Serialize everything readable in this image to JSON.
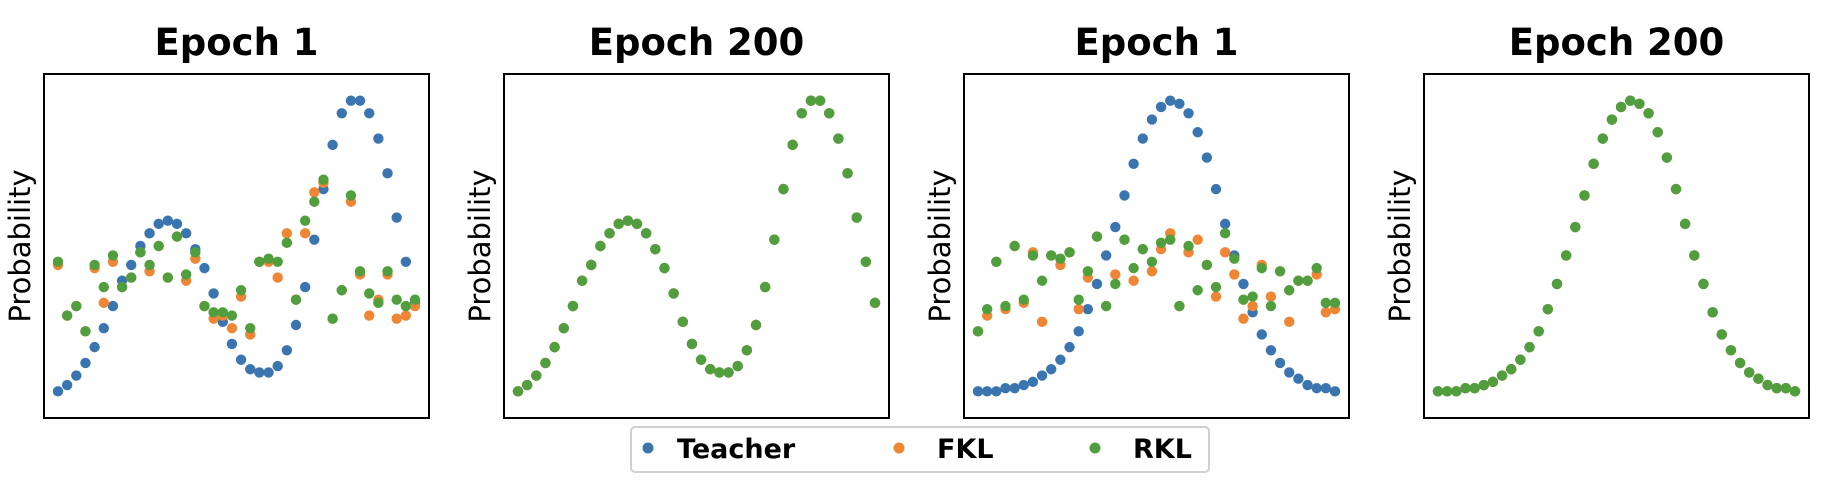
{
  "colors": {
    "teacher": "#3b75af",
    "fkl": "#ef8636",
    "rkl": "#519e3e"
  },
  "legend": {
    "items": [
      {
        "name": "Teacher",
        "color": "#3b75af"
      },
      {
        "name": "FKL",
        "color": "#ef8636"
      },
      {
        "name": "RKL",
        "color": "#519e3e"
      }
    ]
  },
  "chart_data": [
    {
      "type": "scatter",
      "title": "Epoch 1",
      "ylabel": "Probability",
      "xlabel": "",
      "xlim": [
        0,
        39
      ],
      "ylim": [
        0,
        1
      ],
      "series": [
        {
          "name": "Teacher",
          "x": [
            1,
            2,
            3,
            4,
            5,
            6,
            7,
            8,
            9,
            10,
            11,
            12,
            13,
            14,
            15,
            16,
            17,
            18,
            19,
            20,
            21,
            22,
            23,
            24,
            25,
            26,
            27,
            28,
            29,
            30,
            31,
            32,
            33,
            34,
            35,
            36,
            37,
            38,
            39,
            40
          ],
          "values": [
            0.04,
            0.06,
            0.09,
            0.13,
            0.18,
            0.24,
            0.31,
            0.39,
            0.44,
            0.5,
            0.54,
            0.57,
            0.58,
            0.57,
            0.54,
            0.49,
            0.43,
            0.35,
            0.26,
            0.19,
            0.14,
            0.11,
            0.1,
            0.1,
            0.12,
            0.17,
            0.25,
            0.37,
            0.52,
            0.68,
            0.82,
            0.92,
            0.96,
            0.96,
            0.92,
            0.84,
            0.73,
            0.59,
            0.45,
            0.32
          ]
        },
        {
          "name": "FKL",
          "x": [
            1,
            2,
            3,
            4,
            5,
            6,
            7,
            8,
            9,
            10,
            11,
            12,
            13,
            14,
            15,
            16,
            17,
            18,
            19,
            20,
            21,
            22,
            23,
            24,
            25,
            26,
            27,
            28,
            29,
            30,
            31,
            32,
            33,
            34,
            35,
            36,
            37,
            38,
            39,
            40
          ],
          "values": [
            0.44,
            0.28,
            0.31,
            0.23,
            0.43,
            0.32,
            0.45,
            0.37,
            0.4,
            0.48,
            0.42,
            0.5,
            0.4,
            0.53,
            0.39,
            0.46,
            0.31,
            0.27,
            0.28,
            0.24,
            0.34,
            0.22,
            0.45,
            0.45,
            0.4,
            0.54,
            0.33,
            0.54,
            0.67,
            0.7,
            0.27,
            0.36,
            0.64,
            0.41,
            0.28,
            0.33,
            0.41,
            0.27,
            0.28,
            0.31
          ]
        },
        {
          "name": "RKL",
          "x": [
            1,
            2,
            3,
            4,
            5,
            6,
            7,
            8,
            9,
            10,
            11,
            12,
            13,
            14,
            15,
            16,
            17,
            18,
            19,
            20,
            21,
            22,
            23,
            24,
            25,
            26,
            27,
            28,
            29,
            30,
            31,
            32,
            33,
            34,
            35,
            36,
            37,
            38,
            39,
            40
          ],
          "values": [
            0.45,
            0.28,
            0.31,
            0.23,
            0.44,
            0.37,
            0.47,
            0.37,
            0.4,
            0.48,
            0.44,
            0.5,
            0.4,
            0.53,
            0.41,
            0.48,
            0.31,
            0.29,
            0.29,
            0.28,
            0.36,
            0.24,
            0.45,
            0.46,
            0.45,
            0.51,
            0.33,
            0.58,
            0.64,
            0.71,
            0.27,
            0.36,
            0.66,
            0.42,
            0.35,
            0.32,
            0.42,
            0.33,
            0.31,
            0.33
          ]
        }
      ]
    },
    {
      "type": "scatter",
      "title": "Epoch 200",
      "ylabel": "Probability",
      "xlabel": "",
      "xlim": [
        0,
        39
      ],
      "ylim": [
        0,
        1
      ],
      "series": [
        {
          "name": "Teacher",
          "x": [
            1,
            2,
            3,
            4,
            5,
            6,
            7,
            8,
            9,
            10,
            11,
            12,
            13,
            14,
            15,
            16,
            17,
            18,
            19,
            20,
            21,
            22,
            23,
            24,
            25,
            26,
            27,
            28,
            29,
            30,
            31,
            32,
            33,
            34,
            35,
            36,
            37,
            38,
            39,
            40
          ],
          "values": [
            0.04,
            0.06,
            0.09,
            0.13,
            0.18,
            0.24,
            0.31,
            0.39,
            0.44,
            0.5,
            0.54,
            0.57,
            0.58,
            0.57,
            0.54,
            0.49,
            0.43,
            0.35,
            0.26,
            0.19,
            0.14,
            0.11,
            0.1,
            0.1,
            0.12,
            0.17,
            0.25,
            0.37,
            0.52,
            0.68,
            0.82,
            0.92,
            0.96,
            0.96,
            0.92,
            0.84,
            0.73,
            0.59,
            0.45,
            0.32
          ]
        },
        {
          "name": "FKL",
          "x": [
            1,
            2,
            3,
            4,
            5,
            6,
            7,
            8,
            9,
            10,
            11,
            12,
            13,
            14,
            15,
            16,
            17,
            18,
            19,
            20,
            21,
            22,
            23,
            24,
            25,
            26,
            27,
            28,
            29,
            30,
            31,
            32,
            33,
            34,
            35,
            36,
            37,
            38,
            39,
            40
          ],
          "values": [
            0.04,
            0.06,
            0.09,
            0.13,
            0.18,
            0.24,
            0.31,
            0.39,
            0.44,
            0.5,
            0.54,
            0.57,
            0.58,
            0.57,
            0.54,
            0.49,
            0.43,
            0.35,
            0.26,
            0.19,
            0.14,
            0.11,
            0.1,
            0.1,
            0.12,
            0.17,
            0.25,
            0.37,
            0.52,
            0.68,
            0.82,
            0.92,
            0.96,
            0.96,
            0.92,
            0.84,
            0.73,
            0.59,
            0.45,
            0.32
          ]
        },
        {
          "name": "RKL",
          "x": [
            1,
            2,
            3,
            4,
            5,
            6,
            7,
            8,
            9,
            10,
            11,
            12,
            13,
            14,
            15,
            16,
            17,
            18,
            19,
            20,
            21,
            22,
            23,
            24,
            25,
            26,
            27,
            28,
            29,
            30,
            31,
            32,
            33,
            34,
            35,
            36,
            37,
            38,
            39,
            40
          ],
          "values": [
            0.04,
            0.06,
            0.09,
            0.13,
            0.18,
            0.24,
            0.31,
            0.39,
            0.44,
            0.5,
            0.54,
            0.57,
            0.58,
            0.57,
            0.54,
            0.49,
            0.43,
            0.35,
            0.26,
            0.19,
            0.14,
            0.11,
            0.1,
            0.1,
            0.12,
            0.17,
            0.25,
            0.37,
            0.52,
            0.68,
            0.82,
            0.92,
            0.96,
            0.96,
            0.92,
            0.84,
            0.73,
            0.59,
            0.45,
            0.32
          ]
        }
      ]
    },
    {
      "type": "scatter",
      "title": "Epoch 1",
      "ylabel": "Probability",
      "xlabel": "",
      "xlim": [
        0,
        39
      ],
      "ylim": [
        0,
        1
      ],
      "series": [
        {
          "name": "Teacher",
          "x": [
            1,
            2,
            3,
            4,
            5,
            6,
            7,
            8,
            9,
            10,
            11,
            12,
            13,
            14,
            15,
            16,
            17,
            18,
            19,
            20,
            21,
            22,
            23,
            24,
            25,
            26,
            27,
            28,
            29,
            30,
            31,
            32,
            33,
            34,
            35,
            36,
            37,
            38,
            39,
            40
          ],
          "values": [
            0.04,
            0.04,
            0.04,
            0.05,
            0.05,
            0.06,
            0.07,
            0.09,
            0.11,
            0.14,
            0.18,
            0.23,
            0.3,
            0.38,
            0.47,
            0.56,
            0.66,
            0.76,
            0.84,
            0.9,
            0.94,
            0.96,
            0.95,
            0.92,
            0.86,
            0.78,
            0.68,
            0.57,
            0.47,
            0.38,
            0.29,
            0.22,
            0.17,
            0.13,
            0.1,
            0.08,
            0.06,
            0.05,
            0.05,
            0.04
          ]
        },
        {
          "name": "FKL",
          "x": [
            1,
            2,
            3,
            4,
            5,
            6,
            7,
            8,
            9,
            10,
            11,
            12,
            13,
            14,
            15,
            16,
            17,
            18,
            19,
            20,
            21,
            22,
            23,
            24,
            25,
            26,
            27,
            28,
            29,
            30,
            31,
            32,
            33,
            34,
            35,
            36,
            37,
            38,
            39,
            40
          ],
          "values": [
            0.23,
            0.28,
            0.45,
            0.3,
            0.5,
            0.32,
            0.48,
            0.26,
            0.47,
            0.44,
            0.48,
            0.3,
            0.4,
            0.53,
            0.31,
            0.41,
            0.52,
            0.39,
            0.49,
            0.42,
            0.49,
            0.54,
            0.31,
            0.48,
            0.52,
            0.44,
            0.34,
            0.48,
            0.41,
            0.27,
            0.31,
            0.44,
            0.34,
            0.42,
            0.26,
            0.39,
            0.39,
            0.41,
            0.29,
            0.3
          ]
        },
        {
          "name": "RKL",
          "x": [
            1,
            2,
            3,
            4,
            5,
            6,
            7,
            8,
            9,
            10,
            11,
            12,
            13,
            14,
            15,
            16,
            17,
            18,
            19,
            20,
            21,
            22,
            23,
            24,
            25,
            26,
            27,
            28,
            29,
            30,
            31,
            32,
            33,
            34,
            35,
            36,
            37,
            38,
            39,
            40
          ],
          "values": [
            0.23,
            0.3,
            0.45,
            0.31,
            0.5,
            0.33,
            0.47,
            0.39,
            0.47,
            0.46,
            0.48,
            0.33,
            0.42,
            0.53,
            0.31,
            0.38,
            0.52,
            0.43,
            0.49,
            0.45,
            0.51,
            0.52,
            0.31,
            0.5,
            0.36,
            0.44,
            0.37,
            0.54,
            0.46,
            0.33,
            0.34,
            0.43,
            0.31,
            0.42,
            0.36,
            0.39,
            0.39,
            0.43,
            0.32,
            0.32
          ]
        }
      ]
    },
    {
      "type": "scatter",
      "title": "Epoch 200",
      "ylabel": "Probability",
      "xlabel": "",
      "xlim": [
        0,
        39
      ],
      "ylim": [
        0,
        1
      ],
      "series": [
        {
          "name": "Teacher",
          "x": [
            1,
            2,
            3,
            4,
            5,
            6,
            7,
            8,
            9,
            10,
            11,
            12,
            13,
            14,
            15,
            16,
            17,
            18,
            19,
            20,
            21,
            22,
            23,
            24,
            25,
            26,
            27,
            28,
            29,
            30,
            31,
            32,
            33,
            34,
            35,
            36,
            37,
            38,
            39,
            40
          ],
          "values": [
            0.04,
            0.04,
            0.04,
            0.05,
            0.05,
            0.06,
            0.07,
            0.09,
            0.11,
            0.14,
            0.18,
            0.23,
            0.3,
            0.38,
            0.47,
            0.56,
            0.66,
            0.76,
            0.84,
            0.9,
            0.94,
            0.96,
            0.95,
            0.92,
            0.86,
            0.78,
            0.68,
            0.57,
            0.47,
            0.38,
            0.29,
            0.22,
            0.17,
            0.13,
            0.1,
            0.08,
            0.06,
            0.05,
            0.05,
            0.04
          ]
        },
        {
          "name": "FKL",
          "x": [
            1,
            2,
            3,
            4,
            5,
            6,
            7,
            8,
            9,
            10,
            11,
            12,
            13,
            14,
            15,
            16,
            17,
            18,
            19,
            20,
            21,
            22,
            23,
            24,
            25,
            26,
            27,
            28,
            29,
            30,
            31,
            32,
            33,
            34,
            35,
            36,
            37,
            38,
            39,
            40
          ],
          "values": [
            0.04,
            0.04,
            0.04,
            0.05,
            0.05,
            0.06,
            0.07,
            0.09,
            0.11,
            0.14,
            0.18,
            0.23,
            0.3,
            0.38,
            0.47,
            0.56,
            0.66,
            0.76,
            0.84,
            0.9,
            0.94,
            0.96,
            0.95,
            0.92,
            0.86,
            0.78,
            0.68,
            0.57,
            0.47,
            0.38,
            0.29,
            0.22,
            0.17,
            0.13,
            0.1,
            0.08,
            0.06,
            0.05,
            0.05,
            0.04
          ]
        },
        {
          "name": "RKL",
          "x": [
            1,
            2,
            3,
            4,
            5,
            6,
            7,
            8,
            9,
            10,
            11,
            12,
            13,
            14,
            15,
            16,
            17,
            18,
            19,
            20,
            21,
            22,
            23,
            24,
            25,
            26,
            27,
            28,
            29,
            30,
            31,
            32,
            33,
            34,
            35,
            36,
            37,
            38,
            39,
            40
          ],
          "values": [
            0.04,
            0.04,
            0.04,
            0.05,
            0.05,
            0.06,
            0.07,
            0.09,
            0.11,
            0.14,
            0.18,
            0.23,
            0.3,
            0.38,
            0.47,
            0.56,
            0.66,
            0.76,
            0.84,
            0.9,
            0.94,
            0.96,
            0.95,
            0.92,
            0.86,
            0.78,
            0.68,
            0.57,
            0.47,
            0.38,
            0.29,
            0.22,
            0.17,
            0.13,
            0.1,
            0.08,
            0.06,
            0.05,
            0.05,
            0.04
          ]
        }
      ]
    }
  ]
}
